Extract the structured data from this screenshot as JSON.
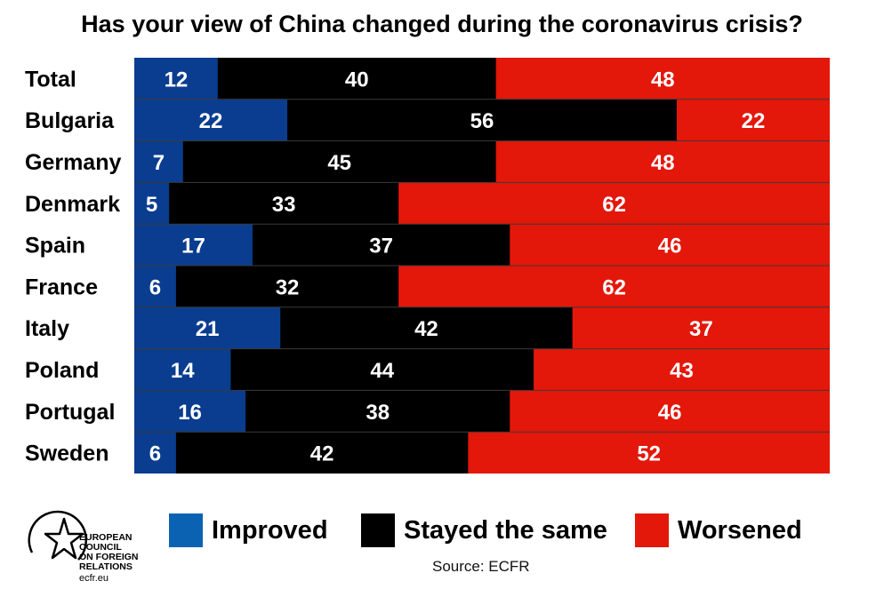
{
  "chart_data": {
    "type": "bar",
    "orientation": "horizontal",
    "stacked": true,
    "title": "Has your view of China changed during the coronavirus crisis?",
    "categories": [
      "Total",
      "Bulgaria",
      "Germany",
      "Denmark",
      "Spain",
      "France",
      "Italy",
      "Poland",
      "Portugal",
      "Sweden"
    ],
    "series": [
      {
        "name": "Improved",
        "color": "#0a3d8f",
        "legend_color": "#0b62b3",
        "values": [
          12,
          22,
          7,
          5,
          17,
          6,
          21,
          14,
          16,
          6
        ]
      },
      {
        "name": "Stayed the same",
        "color": "#000000",
        "legend_color": "#000000",
        "values": [
          40,
          56,
          45,
          33,
          37,
          32,
          42,
          44,
          38,
          42
        ]
      },
      {
        "name": "Worsened",
        "color": "#e3170a",
        "legend_color": "#e3170a",
        "values": [
          48,
          22,
          48,
          62,
          46,
          62,
          37,
          43,
          46,
          52
        ]
      }
    ],
    "xlabel": "",
    "ylabel": "",
    "xlim": [
      0,
      100
    ],
    "grid": false,
    "legend_position": "bottom",
    "source": "Source: ECFR"
  },
  "logo": {
    "text": [
      "EUROPEAN",
      "COUNCIL",
      "ON FOREIGN",
      "RELATIONS"
    ],
    "url": "ecfr.eu"
  }
}
